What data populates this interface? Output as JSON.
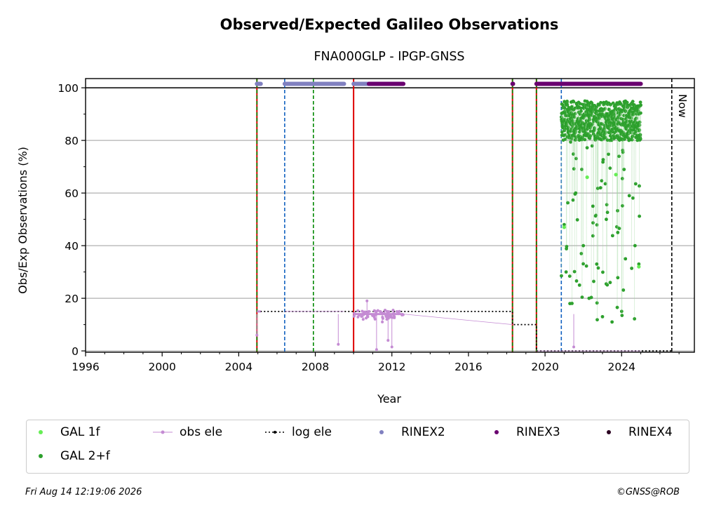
{
  "chart_data": {
    "type": "scatter",
    "title": "Observed/Expected Galileo Observations",
    "subtitle": "FNA000GLP - IPGP-GNSS",
    "xlabel": "Year",
    "ylabel": "Obs/Exp Observations (%)",
    "xlim": [
      1996,
      2027.8
    ],
    "ylim": [
      -0.5,
      103.5
    ],
    "x_ticks": [
      1996,
      2000,
      2004,
      2008,
      2012,
      2016,
      2020,
      2024
    ],
    "y_ticks": [
      0,
      20,
      40,
      60,
      80,
      100
    ],
    "grid": "horizontal",
    "legend_placement": "below",
    "now_label": "Now",
    "now_year": 2026.62,
    "colors": {
      "gal_1f": "#66ee55",
      "gal_2f": "#2ca02c",
      "obs_ele": "#c48bd3",
      "log_ele": "#000000",
      "rinex2": "#8080c0",
      "rinex3": "#6a0070",
      "rinex4": "#2a0020",
      "red_line": "#dd0000",
      "green_dash": "#008800",
      "blue_dash": "#1060c0"
    },
    "event_lines": [
      {
        "year": 2004.95,
        "style": "red-green"
      },
      {
        "year": 2006.4,
        "style": "blue-dash"
      },
      {
        "year": 2007.9,
        "style": "green-dash"
      },
      {
        "year": 2010.0,
        "style": "red"
      },
      {
        "year": 2018.3,
        "style": "red-green"
      },
      {
        "year": 2019.55,
        "style": "red-green"
      },
      {
        "year": 2020.85,
        "style": "blue-dash"
      }
    ],
    "log_ele": [
      [
        2004.95,
        15
      ],
      [
        2018.3,
        15
      ],
      [
        2018.3,
        10
      ],
      [
        2019.55,
        10
      ],
      [
        2019.55,
        0
      ],
      [
        2026.62,
        0
      ]
    ],
    "obs_ele_segments": [
      {
        "x": [
          2004.95,
          2005.15
        ],
        "y": [
          15,
          15
        ]
      },
      {
        "x": [
          2006.4,
          2009.5
        ],
        "y": [
          15,
          15
        ]
      },
      {
        "x": [
          2010.0,
          2012.6
        ],
        "y": [
          14,
          14
        ]
      },
      {
        "x": [
          2012.6,
          2018.3
        ],
        "y": [
          14,
          10
        ]
      },
      {
        "x": [
          2019.55,
          2025.0
        ],
        "y": [
          0,
          0
        ]
      }
    ],
    "obs_ele_outliers": [
      [
        2004.95,
        6
      ],
      [
        2009.2,
        2.5
      ],
      [
        2010.5,
        12
      ],
      [
        2010.7,
        19
      ],
      [
        2011.2,
        0.5
      ],
      [
        2011.5,
        11
      ],
      [
        2011.8,
        4
      ],
      [
        2012.0,
        1.5
      ],
      [
        2021.5,
        1.5
      ]
    ],
    "rinex2_ranges": [
      [
        2004.95,
        2005.15
      ],
      [
        2006.4,
        2009.5
      ],
      [
        2010.0,
        2010.8
      ]
    ],
    "rinex3_ranges": [
      [
        2010.8,
        2012.6
      ],
      [
        2018.3,
        2018.33
      ],
      [
        2019.55,
        2025.0
      ]
    ],
    "rinex4_ranges": [],
    "gal_2f": {
      "x_range": [
        2020.85,
        2025.0
      ],
      "main_band": [
        80,
        95
      ],
      "min_value": 11,
      "sample_lows": [
        [
          2021.0,
          48
        ],
        [
          2021.1,
          30
        ],
        [
          2021.3,
          18
        ],
        [
          2021.6,
          60
        ],
        [
          2021.8,
          25
        ],
        [
          2022.0,
          40
        ],
        [
          2022.3,
          20
        ],
        [
          2022.5,
          55
        ],
        [
          2022.7,
          33
        ],
        [
          2022.9,
          62
        ],
        [
          2023.0,
          13
        ],
        [
          2023.2,
          50
        ],
        [
          2023.4,
          26
        ],
        [
          2023.5,
          11
        ],
        [
          2023.8,
          45
        ],
        [
          2024.2,
          35
        ],
        [
          2024.4,
          59
        ],
        [
          2024.7,
          40
        ],
        [
          2024.9,
          33
        ]
      ]
    },
    "gal_1f": {
      "x_range": [
        2020.9,
        2025.0
      ],
      "values": [
        [
          2021.0,
          47
        ],
        [
          2022.2,
          66
        ],
        [
          2023.7,
          67
        ],
        [
          2024.9,
          32
        ]
      ]
    }
  },
  "legend": {
    "items": [
      {
        "label": "GAL 1f",
        "key": "gal_1f"
      },
      {
        "label": "obs ele",
        "key": "obs_ele"
      },
      {
        "label": "log ele",
        "key": "log_ele"
      },
      {
        "label": "RINEX2",
        "key": "rinex2"
      },
      {
        "label": "RINEX3",
        "key": "rinex3"
      },
      {
        "label": "RINEX4",
        "key": "rinex4"
      },
      {
        "label": "GAL 2+f",
        "key": "gal_2f"
      }
    ]
  },
  "footer": {
    "timestamp": "Fri Aug 14 12:19:06 2026",
    "credit": "©GNSS@ROB"
  }
}
